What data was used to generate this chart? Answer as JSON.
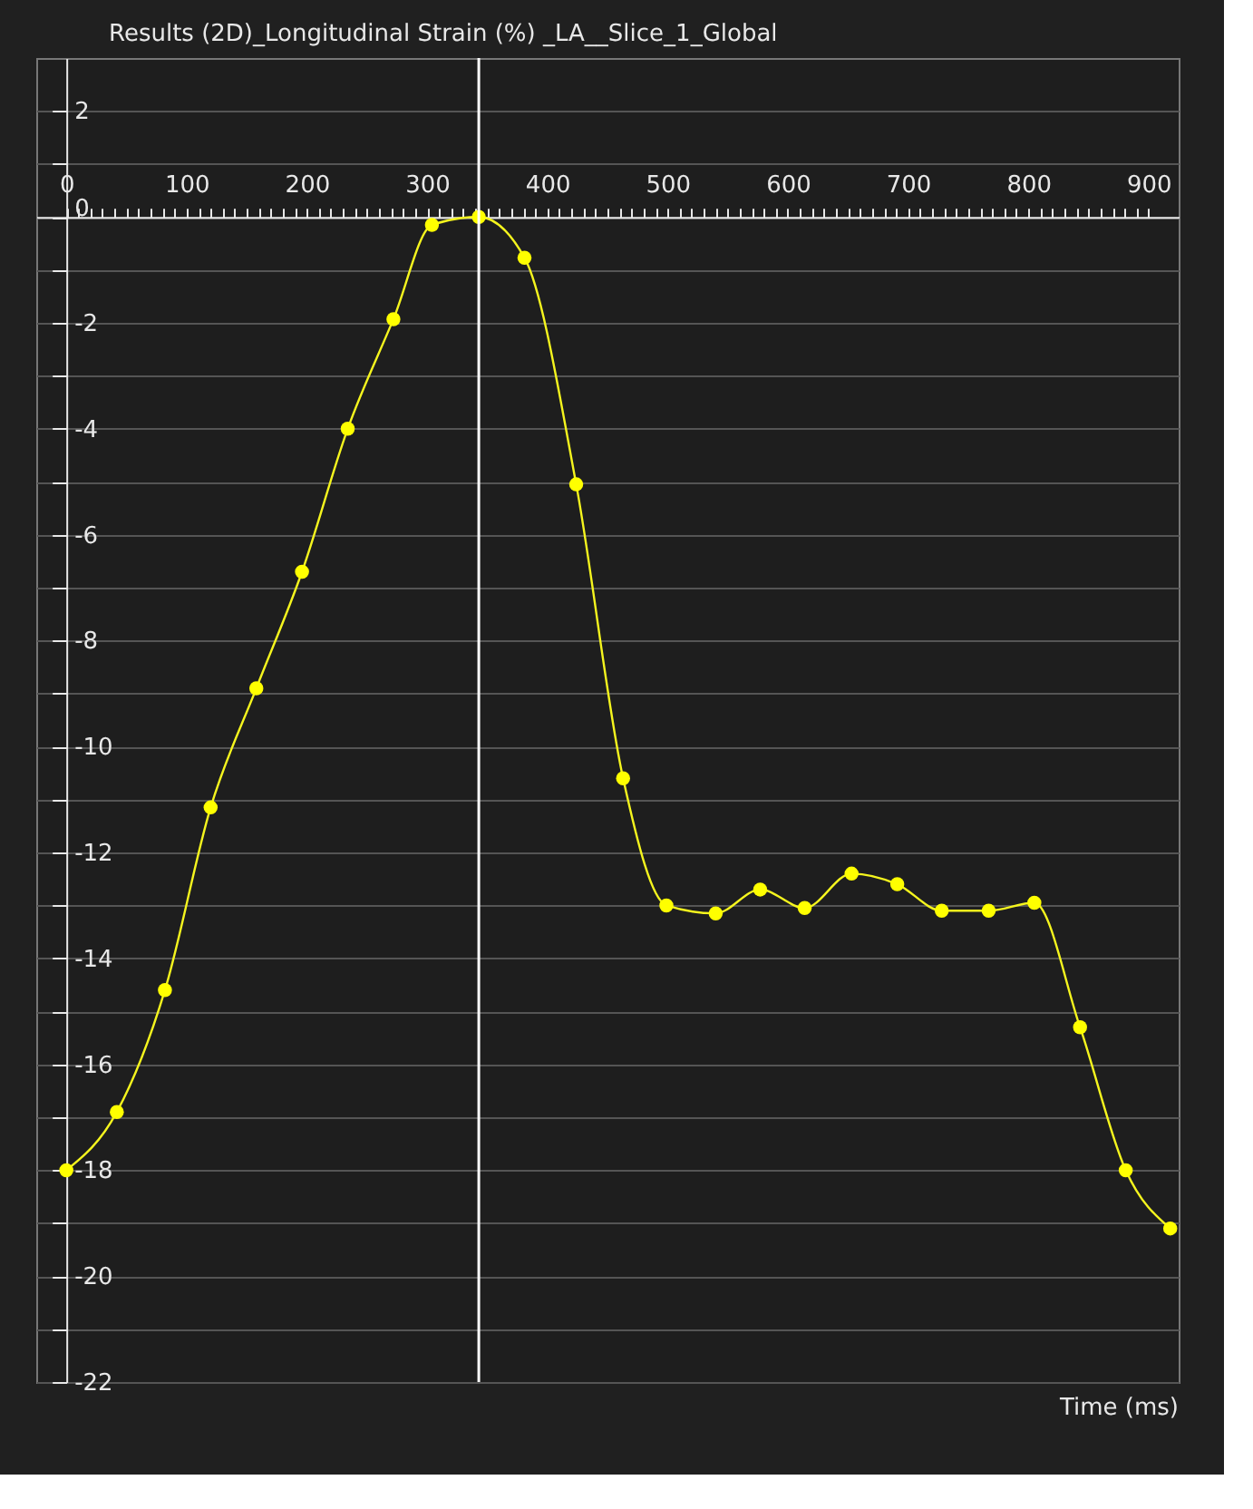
{
  "chart_data": {
    "type": "line",
    "title": "Results (2D)_Longitudinal Strain (%) _LA__Slice_1_Global",
    "xlabel": "Time (ms)",
    "x": [
      0,
      42,
      82,
      120,
      158,
      196,
      234,
      272,
      304,
      343,
      381,
      424,
      463,
      499,
      540,
      577,
      614,
      653,
      691,
      728,
      767,
      805,
      843,
      881,
      918
    ],
    "series": [
      {
        "color": "#f5f51e",
        "values": [
          -18.0,
          -16.9,
          -14.6,
          -11.15,
          -8.9,
          -6.7,
          -4.0,
          -1.93,
          -0.15,
          0.0,
          -0.77,
          -5.05,
          -10.6,
          -13.0,
          -13.15,
          -12.7,
          -13.05,
          -12.4,
          -12.6,
          -13.1,
          -13.1,
          -12.95,
          -15.3,
          -18.0,
          -19.1
        ]
      }
    ],
    "marker": "circle",
    "line_style": "solid",
    "grid": "y",
    "xlim": [
      -25,
      925
    ],
    "ylim": [
      -22,
      3
    ],
    "xticks": [
      0,
      {
        "value": 10,
        "label": null
      },
      {
        "value": 20,
        "label": null
      },
      {
        "value": 30,
        "label": null
      },
      {
        "value": 40,
        "label": null
      },
      {
        "value": 50,
        "label": null
      },
      {
        "value": 60,
        "label": null
      },
      {
        "value": 70,
        "label": null
      },
      {
        "value": 80,
        "label": null
      },
      {
        "value": 90,
        "label": null
      },
      100,
      {
        "value": 110,
        "label": null
      },
      {
        "value": 120,
        "label": null
      },
      {
        "value": 130,
        "label": null
      },
      {
        "value": 140,
        "label": null
      },
      {
        "value": 150,
        "label": null
      },
      {
        "value": 160,
        "label": null
      },
      {
        "value": 170,
        "label": null
      },
      {
        "value": 180,
        "label": null
      },
      {
        "value": 190,
        "label": null
      },
      200,
      {
        "value": 210,
        "label": null
      },
      {
        "value": 220,
        "label": null
      },
      {
        "value": 230,
        "label": null
      },
      {
        "value": 240,
        "label": null
      },
      {
        "value": 250,
        "label": null
      },
      {
        "value": 260,
        "label": null
      },
      {
        "value": 270,
        "label": null
      },
      {
        "value": 280,
        "label": null
      },
      {
        "value": 290,
        "label": null
      },
      300,
      {
        "value": 310,
        "label": null
      },
      {
        "value": 320,
        "label": null
      },
      {
        "value": 330,
        "label": null
      },
      {
        "value": 340,
        "label": null
      },
      {
        "value": 350,
        "label": null
      },
      {
        "value": 360,
        "label": null
      },
      {
        "value": 370,
        "label": null
      },
      {
        "value": 380,
        "label": null
      },
      {
        "value": 390,
        "label": null
      },
      400,
      {
        "value": 410,
        "label": null
      },
      {
        "value": 420,
        "label": null
      },
      {
        "value": 430,
        "label": null
      },
      {
        "value": 440,
        "label": null
      },
      {
        "value": 450,
        "label": null
      },
      {
        "value": 460,
        "label": null
      },
      {
        "value": 470,
        "label": null
      },
      {
        "value": 480,
        "label": null
      },
      {
        "value": 490,
        "label": null
      },
      500,
      {
        "value": 510,
        "label": null
      },
      {
        "value": 520,
        "label": null
      },
      {
        "value": 530,
        "label": null
      },
      {
        "value": 540,
        "label": null
      },
      {
        "value": 550,
        "label": null
      },
      {
        "value": 560,
        "label": null
      },
      {
        "value": 570,
        "label": null
      },
      {
        "value": 580,
        "label": null
      },
      {
        "value": 590,
        "label": null
      },
      600,
      {
        "value": 610,
        "label": null
      },
      {
        "value": 620,
        "label": null
      },
      {
        "value": 630,
        "label": null
      },
      {
        "value": 640,
        "label": null
      },
      {
        "value": 650,
        "label": null
      },
      {
        "value": 660,
        "label": null
      },
      {
        "value": 670,
        "label": null
      },
      {
        "value": 680,
        "label": null
      },
      {
        "value": 690,
        "label": null
      },
      700,
      {
        "value": 710,
        "label": null
      },
      {
        "value": 720,
        "label": null
      },
      {
        "value": 730,
        "label": null
      },
      {
        "value": 740,
        "label": null
      },
      {
        "value": 750,
        "label": null
      },
      {
        "value": 760,
        "label": null
      },
      {
        "value": 770,
        "label": null
      },
      {
        "value": 780,
        "label": null
      },
      {
        "value": 790,
        "label": null
      },
      800,
      {
        "value": 810,
        "label": null
      },
      {
        "value": 820,
        "label": null
      },
      {
        "value": 830,
        "label": null
      },
      {
        "value": 840,
        "label": null
      },
      {
        "value": 850,
        "label": null
      },
      {
        "value": 860,
        "label": null
      },
      {
        "value": 870,
        "label": null
      },
      {
        "value": 880,
        "label": null
      },
      {
        "value": 890,
        "label": null
      },
      900
    ],
    "yticks": [
      2,
      {
        "value": 1,
        "label": null
      },
      0,
      {
        "value": -1,
        "label": null
      },
      -2,
      {
        "value": -3,
        "label": null
      },
      -4,
      {
        "value": -5,
        "label": null
      },
      -6,
      {
        "value": -7,
        "label": null
      },
      -8,
      {
        "value": -9,
        "label": null
      },
      -10,
      {
        "value": -11,
        "label": null
      },
      -12,
      {
        "value": -13,
        "label": null
      },
      -14,
      {
        "value": -15,
        "label": null
      },
      -16,
      {
        "value": -17,
        "label": null
      },
      -18,
      {
        "value": -19,
        "label": null
      },
      -20,
      {
        "value": -21,
        "label": null
      },
      -22
    ],
    "ref_lines": [
      {
        "axis": "x",
        "value": 343,
        "color": "#ffffff"
      }
    ]
  }
}
